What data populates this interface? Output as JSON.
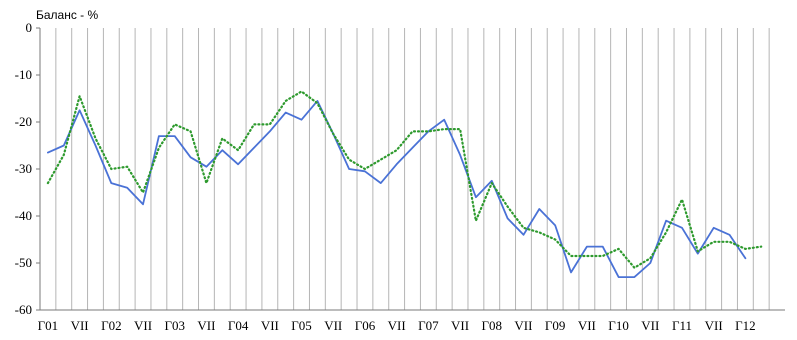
{
  "chart_data": {
    "type": "line",
    "title": "Баланс - %",
    "xlabel": "",
    "ylabel": "",
    "ylim": [
      -60,
      0
    ],
    "yticks": [
      0,
      -10,
      -20,
      -30,
      -40,
      -50,
      -60
    ],
    "grid": "vertical",
    "x_tick_labels": [
      "Г01",
      "VII",
      "Г02",
      "VII",
      "Г03",
      "VII",
      "Г04",
      "VII",
      "Г05",
      "VII",
      "Г06",
      "VII",
      "Г07",
      "VII",
      "Г08",
      "VII",
      "Г09",
      "VII",
      "Г10",
      "VII",
      "Г11",
      "VII",
      "Г12"
    ],
    "periods": 47,
    "series": [
      {
        "style": "solid",
        "color": "#4a72d6",
        "values": [
          -26.5,
          -25,
          -17.5,
          -25,
          -33,
          -34,
          -37.5,
          -23,
          -23,
          -27.5,
          -29.5,
          -26,
          -29,
          -25.5,
          -22,
          -18,
          -19.5,
          -15.5,
          -22.5,
          -30,
          -30.5,
          -33,
          -29,
          -25.5,
          -22,
          -19.5,
          -27,
          -36,
          -32.5,
          -40.5,
          -44,
          -38.5,
          -42,
          -52,
          -46.5,
          -46.5,
          -53,
          -53,
          -50,
          -41,
          -42.5,
          -48,
          -42.5,
          -44,
          -49
        ]
      },
      {
        "style": "dotted",
        "color": "#2e9a2e",
        "values": [
          -33,
          -27,
          -14.5,
          -23.5,
          -30,
          -29.5,
          -35,
          -25.5,
          -20.5,
          -22,
          -33,
          -23.5,
          -26,
          -20.5,
          -20.5,
          -15.5,
          -13.5,
          -16,
          -22.5,
          -28,
          -30,
          -28,
          -26,
          -22,
          -22,
          -21.5,
          -21.5,
          -41,
          -33,
          -38,
          -42.5,
          -43.5,
          -45,
          -48.5,
          -48.5,
          -48.5,
          -47,
          -51,
          -49,
          -43.5,
          -36.5,
          -47.5,
          -45.5,
          -45.5,
          -47,
          -46.5
        ]
      }
    ]
  }
}
